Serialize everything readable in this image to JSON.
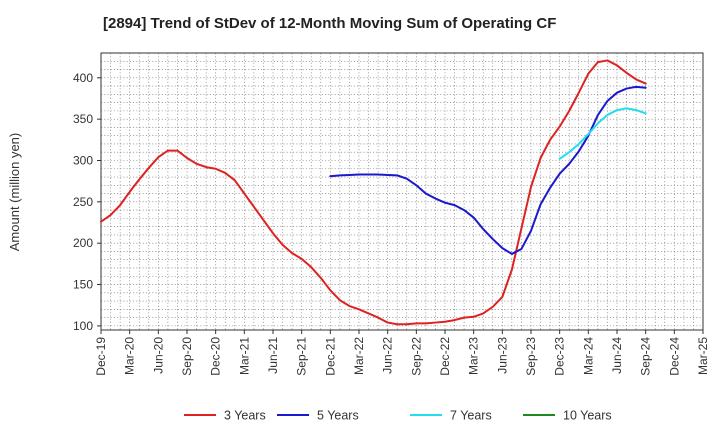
{
  "chart_data": {
    "type": "line",
    "title": "[2894]  Trend of StDev of 12-Month Moving Sum of Operating CF",
    "xlabel": "",
    "ylabel": "Amount (million yen)",
    "ylim": [
      95,
      430
    ],
    "yticks": [
      100,
      150,
      200,
      250,
      300,
      350,
      400
    ],
    "x_tick_labels": [
      "Dec-19",
      "Mar-20",
      "Jun-20",
      "Sep-20",
      "Dec-20",
      "Mar-21",
      "Jun-21",
      "Sep-21",
      "Dec-21",
      "Mar-22",
      "Jun-22",
      "Sep-22",
      "Dec-22",
      "Mar-23",
      "Jun-23",
      "Sep-23",
      "Dec-23",
      "Mar-24",
      "Jun-24",
      "Sep-24",
      "Dec-24",
      "Mar-25"
    ],
    "grid": true,
    "legend_position": "bottom",
    "series": [
      {
        "name": "3 Years",
        "color": "#dd2222",
        "x": [
          "Dec-19",
          "Jan-20",
          "Feb-20",
          "Mar-20",
          "Apr-20",
          "May-20",
          "Jun-20",
          "Jul-20",
          "Aug-20",
          "Sep-20",
          "Oct-20",
          "Nov-20",
          "Dec-20",
          "Jan-21",
          "Feb-21",
          "Mar-21",
          "Apr-21",
          "May-21",
          "Jun-21",
          "Jul-21",
          "Aug-21",
          "Sep-21",
          "Oct-21",
          "Nov-21",
          "Dec-21",
          "Jan-22",
          "Feb-22",
          "Mar-22",
          "Apr-22",
          "May-22",
          "Jun-22",
          "Jul-22",
          "Aug-22",
          "Sep-22",
          "Oct-22",
          "Nov-22",
          "Dec-22",
          "Jan-23",
          "Feb-23",
          "Mar-23",
          "Apr-23",
          "May-23",
          "Jun-23",
          "Jul-23",
          "Aug-23",
          "Sep-23",
          "Oct-23",
          "Nov-23",
          "Dec-23",
          "Jan-24",
          "Feb-24",
          "Mar-24",
          "Apr-24",
          "May-24",
          "Jun-24",
          "Jul-24",
          "Aug-24",
          "Sep-24"
        ],
        "values": [
          226,
          234,
          246,
          262,
          277,
          291,
          304,
          312,
          312,
          303,
          296,
          292,
          290,
          285,
          276,
          260,
          244,
          228,
          212,
          198,
          188,
          181,
          171,
          158,
          143,
          131,
          124,
          120,
          115,
          110,
          104,
          102,
          102,
          103,
          103,
          104,
          105,
          107,
          110,
          111,
          115,
          123,
          135,
          168,
          218,
          268,
          303,
          325,
          341,
          360,
          382,
          405,
          419,
          421,
          415,
          406,
          398,
          393
        ],
        "values_note": ""
      },
      {
        "name": "5 Years",
        "color": "#1a1acc",
        "x": [
          "Dec-21",
          "Jan-22",
          "Feb-22",
          "Mar-22",
          "Apr-22",
          "May-22",
          "Jun-22",
          "Jul-22",
          "Aug-22",
          "Sep-22",
          "Oct-22",
          "Nov-22",
          "Dec-22",
          "Jan-23",
          "Feb-23",
          "Mar-23",
          "Apr-23",
          "May-23",
          "Jun-23",
          "Jul-23",
          "Aug-23",
          "Sep-23",
          "Oct-23",
          "Nov-23",
          "Dec-23",
          "Jan-24",
          "Feb-24",
          "Mar-24",
          "Apr-24",
          "May-24",
          "Jun-24",
          "Jul-24",
          "Aug-24",
          "Sep-24"
        ],
        "values": [
          281,
          282,
          282.5,
          283,
          283,
          283,
          282.5,
          282,
          278,
          270,
          260,
          254,
          249,
          246,
          240,
          231,
          217,
          205,
          194,
          187,
          193,
          215,
          247,
          267,
          284,
          296,
          311,
          330,
          355,
          372,
          382,
          387,
          389,
          388
        ]
      },
      {
        "name": "7 Years",
        "color": "#22ddee",
        "x": [
          "Dec-23",
          "Jan-24",
          "Feb-24",
          "Mar-24",
          "Apr-24",
          "May-24",
          "Jun-24",
          "Jul-24",
          "Aug-24",
          "Sep-24"
        ],
        "values": [
          302,
          310,
          320,
          332,
          345,
          355,
          361,
          363,
          361,
          357
        ]
      },
      {
        "name": "10 Years",
        "color": "#228822",
        "x": [],
        "values": []
      }
    ]
  }
}
